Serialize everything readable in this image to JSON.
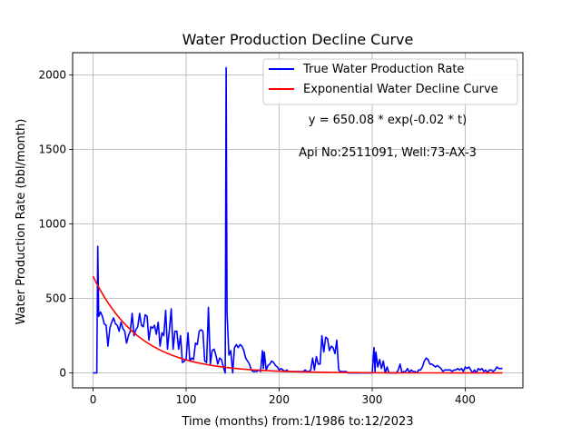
{
  "chart_data": {
    "type": "line",
    "title": "Water Production Decline Curve",
    "xlabel": "Time (months) from:1/1986 to:12/2023",
    "ylabel": "Water Production Rate (bbl/month)",
    "xlim": [
      -22,
      462
    ],
    "ylim": [
      -100,
      2150
    ],
    "xticks": [
      0,
      100,
      200,
      300,
      400
    ],
    "yticks": [
      0,
      500,
      1000,
      1500,
      2000
    ],
    "grid": true,
    "legend_position": "top-right",
    "annotations": [
      "y = 650.08 * exp(-0.02 * t)",
      "Api No:2511091, Well:73-AX-3"
    ],
    "fit": {
      "a": 650.08,
      "b": 0.02
    },
    "series": [
      {
        "name": "True Water Production Rate",
        "color": "#0000ff",
        "points": [
          [
            0,
            0
          ],
          [
            4,
            0
          ],
          [
            5,
            850
          ],
          [
            6,
            380
          ],
          [
            8,
            410
          ],
          [
            10,
            380
          ],
          [
            12,
            330
          ],
          [
            14,
            320
          ],
          [
            16,
            180
          ],
          [
            18,
            300
          ],
          [
            20,
            340
          ],
          [
            22,
            370
          ],
          [
            24,
            330
          ],
          [
            26,
            320
          ],
          [
            28,
            280
          ],
          [
            30,
            340
          ],
          [
            32,
            300
          ],
          [
            34,
            280
          ],
          [
            36,
            200
          ],
          [
            38,
            250
          ],
          [
            40,
            280
          ],
          [
            42,
            400
          ],
          [
            44,
            250
          ],
          [
            46,
            290
          ],
          [
            48,
            310
          ],
          [
            50,
            400
          ],
          [
            52,
            320
          ],
          [
            54,
            310
          ],
          [
            56,
            390
          ],
          [
            58,
            380
          ],
          [
            60,
            220
          ],
          [
            62,
            310
          ],
          [
            64,
            300
          ],
          [
            66,
            320
          ],
          [
            68,
            260
          ],
          [
            70,
            340
          ],
          [
            72,
            180
          ],
          [
            74,
            270
          ],
          [
            76,
            250
          ],
          [
            78,
            420
          ],
          [
            80,
            160
          ],
          [
            82,
            290
          ],
          [
            84,
            430
          ],
          [
            86,
            160
          ],
          [
            88,
            280
          ],
          [
            90,
            280
          ],
          [
            92,
            160
          ],
          [
            94,
            250
          ],
          [
            96,
            70
          ],
          [
            98,
            80
          ],
          [
            100,
            90
          ],
          [
            102,
            270
          ],
          [
            104,
            80
          ],
          [
            106,
            100
          ],
          [
            108,
            90
          ],
          [
            110,
            200
          ],
          [
            112,
            190
          ],
          [
            114,
            280
          ],
          [
            116,
            290
          ],
          [
            118,
            280
          ],
          [
            120,
            80
          ],
          [
            122,
            70
          ],
          [
            124,
            440
          ],
          [
            126,
            60
          ],
          [
            128,
            150
          ],
          [
            130,
            160
          ],
          [
            132,
            120
          ],
          [
            134,
            60
          ],
          [
            136,
            100
          ],
          [
            138,
            90
          ],
          [
            140,
            40
          ],
          [
            142,
            0
          ],
          [
            143,
            2050
          ],
          [
            144,
            400
          ],
          [
            146,
            120
          ],
          [
            148,
            150
          ],
          [
            150,
            0
          ],
          [
            152,
            170
          ],
          [
            154,
            190
          ],
          [
            156,
            170
          ],
          [
            158,
            190
          ],
          [
            160,
            180
          ],
          [
            162,
            150
          ],
          [
            164,
            100
          ],
          [
            166,
            80
          ],
          [
            168,
            60
          ],
          [
            170,
            20
          ],
          [
            172,
            10
          ],
          [
            174,
            10
          ],
          [
            176,
            10
          ],
          [
            178,
            20
          ],
          [
            180,
            10
          ],
          [
            182,
            150
          ],
          [
            183,
            30
          ],
          [
            184,
            140
          ],
          [
            186,
            20
          ],
          [
            188,
            50
          ],
          [
            190,
            60
          ],
          [
            192,
            80
          ],
          [
            194,
            70
          ],
          [
            196,
            50
          ],
          [
            198,
            40
          ],
          [
            200,
            20
          ],
          [
            202,
            30
          ],
          [
            204,
            20
          ],
          [
            206,
            10
          ],
          [
            208,
            20
          ],
          [
            210,
            10
          ],
          [
            212,
            10
          ],
          [
            214,
            10
          ],
          [
            216,
            10
          ],
          [
            218,
            10
          ],
          [
            220,
            10
          ],
          [
            222,
            10
          ],
          [
            224,
            10
          ],
          [
            226,
            10
          ],
          [
            228,
            20
          ],
          [
            230,
            10
          ],
          [
            232,
            10
          ],
          [
            234,
            20
          ],
          [
            236,
            100
          ],
          [
            238,
            20
          ],
          [
            240,
            110
          ],
          [
            242,
            60
          ],
          [
            244,
            60
          ],
          [
            246,
            250
          ],
          [
            248,
            140
          ],
          [
            250,
            240
          ],
          [
            252,
            230
          ],
          [
            254,
            150
          ],
          [
            256,
            180
          ],
          [
            258,
            170
          ],
          [
            260,
            130
          ],
          [
            262,
            220
          ],
          [
            264,
            20
          ],
          [
            266,
            10
          ],
          [
            268,
            10
          ],
          [
            270,
            10
          ],
          [
            272,
            10
          ],
          [
            274,
            0
          ],
          [
            276,
            0
          ],
          [
            278,
            0
          ],
          [
            280,
            0
          ],
          [
            282,
            0
          ],
          [
            284,
            0
          ],
          [
            286,
            0
          ],
          [
            288,
            0
          ],
          [
            290,
            0
          ],
          [
            292,
            0
          ],
          [
            294,
            0
          ],
          [
            296,
            0
          ],
          [
            298,
            0
          ],
          [
            300,
            0
          ],
          [
            302,
            170
          ],
          [
            303,
            10
          ],
          [
            304,
            140
          ],
          [
            306,
            40
          ],
          [
            308,
            90
          ],
          [
            310,
            30
          ],
          [
            312,
            80
          ],
          [
            314,
            0
          ],
          [
            316,
            40
          ],
          [
            318,
            0
          ],
          [
            320,
            0
          ],
          [
            322,
            0
          ],
          [
            324,
            0
          ],
          [
            326,
            0
          ],
          [
            328,
            20
          ],
          [
            330,
            60
          ],
          [
            332,
            0
          ],
          [
            334,
            10
          ],
          [
            336,
            10
          ],
          [
            338,
            30
          ],
          [
            340,
            0
          ],
          [
            342,
            20
          ],
          [
            344,
            10
          ],
          [
            346,
            10
          ],
          [
            348,
            0
          ],
          [
            350,
            20
          ],
          [
            352,
            20
          ],
          [
            354,
            40
          ],
          [
            356,
            80
          ],
          [
            358,
            100
          ],
          [
            360,
            90
          ],
          [
            362,
            60
          ],
          [
            364,
            60
          ],
          [
            366,
            50
          ],
          [
            368,
            40
          ],
          [
            370,
            50
          ],
          [
            372,
            40
          ],
          [
            374,
            30
          ],
          [
            376,
            10
          ],
          [
            378,
            20
          ],
          [
            380,
            20
          ],
          [
            382,
            20
          ],
          [
            384,
            20
          ],
          [
            386,
            10
          ],
          [
            388,
            20
          ],
          [
            390,
            20
          ],
          [
            392,
            30
          ],
          [
            394,
            20
          ],
          [
            396,
            30
          ],
          [
            398,
            10
          ],
          [
            400,
            40
          ],
          [
            402,
            30
          ],
          [
            404,
            40
          ],
          [
            406,
            20
          ],
          [
            408,
            0
          ],
          [
            410,
            20
          ],
          [
            412,
            0
          ],
          [
            414,
            30
          ],
          [
            416,
            20
          ],
          [
            418,
            30
          ],
          [
            420,
            10
          ],
          [
            422,
            20
          ],
          [
            424,
            0
          ],
          [
            426,
            20
          ],
          [
            428,
            20
          ],
          [
            430,
            10
          ],
          [
            432,
            20
          ],
          [
            434,
            40
          ],
          [
            436,
            30
          ],
          [
            438,
            30
          ],
          [
            440,
            30
          ]
        ]
      },
      {
        "name": "Exponential Water Decline Curve",
        "color": "#ff0000",
        "x_range": [
          0,
          440
        ]
      }
    ]
  }
}
